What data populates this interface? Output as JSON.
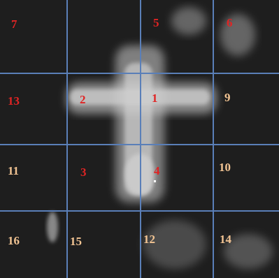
{
  "cells": [
    {
      "label": "7",
      "color": "#e02424"
    },
    {
      "label": "5",
      "color": "#e02424"
    },
    {
      "label": "6",
      "color": "#e02424"
    },
    {
      "label": "13",
      "color": "#e02424"
    },
    {
      "label": "2",
      "color": "#e02424"
    },
    {
      "label": "1",
      "color": "#e02424"
    },
    {
      "label": "9",
      "color": "#f2c493"
    },
    {
      "label": "11",
      "color": "#f2c493"
    },
    {
      "label": "3",
      "color": "#e02424"
    },
    {
      "label": "4",
      "color": "#e02424"
    },
    {
      "label": "10",
      "color": "#f2c493"
    },
    {
      "label": "16",
      "color": "#f2c493"
    },
    {
      "label": "15",
      "color": "#f2c493"
    },
    {
      "label": "12",
      "color": "#f2c493"
    },
    {
      "label": "14",
      "color": "#f2c493"
    }
  ]
}
